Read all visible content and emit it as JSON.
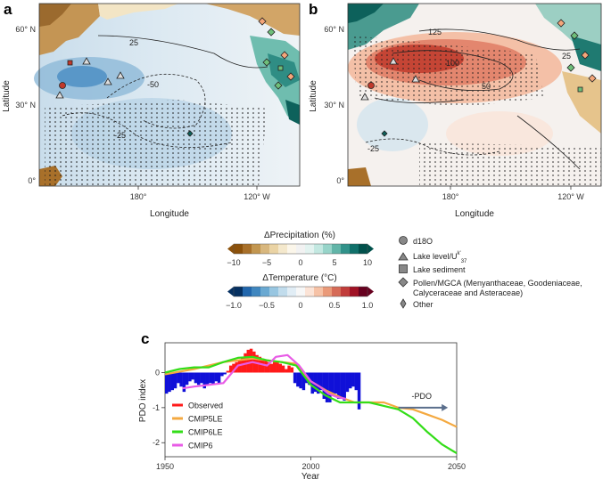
{
  "panels": {
    "a": {
      "letter": "a",
      "xlabel": "Longitude",
      "ylabel": "Latitude",
      "xticks": [
        "180°",
        "120° W"
      ],
      "yticks": [
        "60° N",
        "30° N",
        "0°"
      ],
      "contour_labels": [
        "25",
        "-50",
        "-25"
      ]
    },
    "b": {
      "letter": "b",
      "xlabel": "Longitude",
      "ylabel": "Latitude",
      "xticks": [
        "180°",
        "120° W"
      ],
      "yticks": [
        "60° N",
        "30° N",
        "0°"
      ],
      "contour_labels": [
        "125",
        "100",
        "50",
        "25",
        "-25"
      ]
    }
  },
  "colorbars": {
    "precip": {
      "title": "ΔPrecipitation (%)",
      "ticks": [
        "−10",
        "−5",
        "0",
        "5",
        "10"
      ],
      "colors": [
        "#8c510a",
        "#a8702a",
        "#c29650",
        "#d8b77e",
        "#ead3a4",
        "#f4e8cc",
        "#fbf6ea",
        "#f2f2f2",
        "#e3f3f0",
        "#c3e8e1",
        "#97d4c9",
        "#62b5a8",
        "#31928a",
        "#10706a",
        "#01514c"
      ]
    },
    "temp": {
      "title": "ΔTemperature (°C)",
      "ticks": [
        "−1.0",
        "−0.5",
        "0",
        "0.5",
        "1.0"
      ],
      "colors": [
        "#053061",
        "#2166ac",
        "#3f86bf",
        "#6aa9d2",
        "#98c6e1",
        "#c1dcec",
        "#e1edf5",
        "#f7f7f7",
        "#fbe3d6",
        "#f6c2a6",
        "#ea9a79",
        "#d66b57",
        "#c13c3a",
        "#a01225",
        "#67001f"
      ]
    }
  },
  "legend_symbols": [
    {
      "shape": "circle",
      "label": "d18O"
    },
    {
      "shape": "triangle",
      "label": "Lake level/U",
      "sup": "k'",
      "sub": "37"
    },
    {
      "shape": "square",
      "label": "Lake sediment"
    },
    {
      "shape": "diamond",
      "label": "Pollen/MGCA (Menyanthaceae, Goodeniaceae,",
      "label2": "Calyceraceae and Asteraceae)"
    },
    {
      "shape": "small-diamond",
      "label": "Other"
    }
  ],
  "chart_data": {
    "panel": "c",
    "type": "bar+line",
    "title": "",
    "xlabel": "Year",
    "ylabel": "PDO index",
    "xlim": [
      1950,
      2050
    ],
    "ylim": [
      -2.4,
      0.85
    ],
    "xticks": [
      1950,
      2000,
      2050
    ],
    "yticks": [
      0,
      -1,
      -2
    ],
    "colors": {
      "observed_pos": "#ff1a1a",
      "observed_neg": "#1010d8",
      "CMIP5LE": "#f4a940",
      "CMIP6LE": "#33dd18",
      "CMIP6": "#e85be6",
      "arrow": "#5a6e8c"
    },
    "observed": {
      "name": "Observed",
      "years": [
        1950,
        1951,
        1952,
        1953,
        1954,
        1955,
        1956,
        1957,
        1958,
        1959,
        1960,
        1961,
        1962,
        1963,
        1964,
        1965,
        1966,
        1967,
        1968,
        1969,
        1970,
        1971,
        1972,
        1973,
        1974,
        1975,
        1976,
        1977,
        1978,
        1979,
        1980,
        1981,
        1982,
        1983,
        1984,
        1985,
        1986,
        1987,
        1988,
        1989,
        1990,
        1991,
        1992,
        1993,
        1994,
        1995,
        1996,
        1997,
        1998,
        1999,
        2000,
        2001,
        2002,
        2003,
        2004,
        2005,
        2006,
        2007,
        2008,
        2009,
        2010,
        2011,
        2012,
        2013,
        2014,
        2015,
        2016
      ],
      "values": [
        -0.6,
        -0.55,
        -0.5,
        -0.45,
        -0.3,
        -0.4,
        -0.55,
        -0.35,
        -0.25,
        -0.2,
        -0.3,
        -0.35,
        -0.3,
        -0.45,
        -0.35,
        -0.3,
        -0.35,
        -0.25,
        -0.3,
        -0.1,
        -0.05,
        0.05,
        0.2,
        0.25,
        0.3,
        0.35,
        0.45,
        0.55,
        0.65,
        0.68,
        0.6,
        0.5,
        0.45,
        0.4,
        0.35,
        0.3,
        0.25,
        0.3,
        0.3,
        0.25,
        0.2,
        0.1,
        0.2,
        0.15,
        -0.3,
        -0.4,
        -0.45,
        -0.5,
        -0.3,
        -0.35,
        -0.6,
        -0.55,
        -0.6,
        -0.5,
        -0.75,
        -0.85,
        -0.85,
        -0.65,
        -0.6,
        -0.75,
        -0.75,
        -0.8,
        -0.55,
        -0.45,
        -0.4,
        -0.5,
        -1.05
      ]
    },
    "series": [
      {
        "name": "CMIP5LE",
        "x": [
          1950,
          1960,
          1970,
          1975,
          1980,
          1985,
          1990,
          1995,
          2000,
          2005,
          2010,
          2015,
          2020,
          2025,
          2030,
          2035,
          2040,
          2045,
          2050
        ],
        "values": [
          -0.05,
          0.1,
          0.3,
          0.35,
          0.4,
          0.35,
          0.3,
          0.25,
          -0.25,
          -0.5,
          -0.7,
          -0.85,
          -0.85,
          -0.85,
          -1.0,
          -1.05,
          -1.2,
          -1.35,
          -1.55
        ]
      },
      {
        "name": "CMIP6LE",
        "x": [
          1950,
          1955,
          1960,
          1965,
          1970,
          1975,
          1980,
          1985,
          1990,
          1995,
          2000,
          2005,
          2010,
          2015,
          2020,
          2025,
          2030,
          2035,
          2040,
          2045,
          2050
        ],
        "values": [
          0.0,
          0.1,
          0.15,
          0.15,
          0.3,
          0.42,
          0.45,
          0.35,
          0.3,
          0.2,
          -0.35,
          -0.65,
          -0.85,
          -0.85,
          -0.85,
          -0.95,
          -1.05,
          -1.3,
          -1.7,
          -2.05,
          -2.3
        ]
      },
      {
        "name": "CMIP6",
        "x": [
          1956,
          1960,
          1965,
          1970,
          1975,
          1980,
          1985,
          1988,
          1992,
          1996,
          2000,
          2003,
          2006,
          2009,
          2012
        ],
        "values": [
          -0.45,
          -0.4,
          -0.35,
          -0.3,
          0.2,
          0.3,
          0.2,
          0.45,
          0.5,
          0.2,
          -0.25,
          -0.4,
          -0.6,
          -0.7,
          -0.75
        ]
      }
    ],
    "annotation": "-PDO"
  }
}
